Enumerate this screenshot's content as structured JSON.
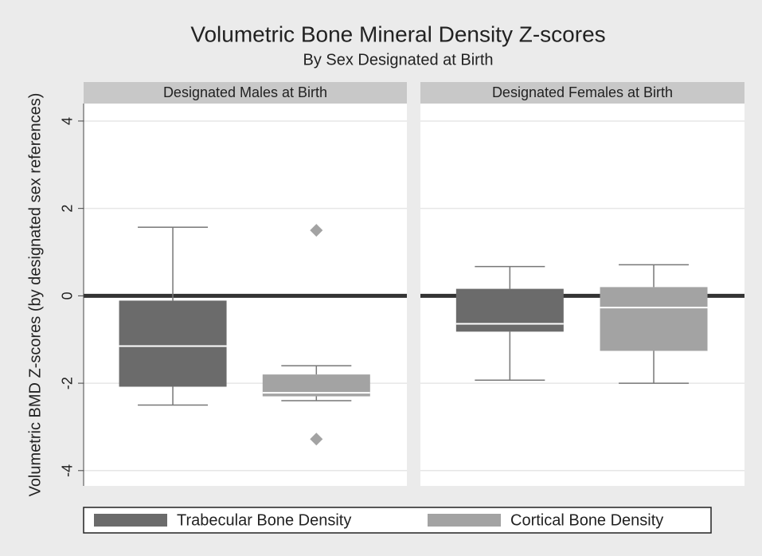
{
  "chart_data": {
    "type": "box",
    "title": "Volumetric Bone Mineral Density Z-scores",
    "subtitle": "By Sex Designated at Birth",
    "ylabel": "Volumetric BMD Z-scores (by designated sex references)",
    "ylim": [
      -4.35,
      4.4
    ],
    "yticks": [
      -4,
      -2,
      0,
      2,
      4
    ],
    "grid": true,
    "reference_line": 0,
    "series": [
      {
        "name": "Trabecular Bone Density",
        "color": "#6b6b6b"
      },
      {
        "name": "Cortical Bone Density",
        "color": "#a3a3a3"
      }
    ],
    "panels": [
      {
        "title": "Designated Males at Birth",
        "boxes": [
          {
            "whisker_low": -2.5,
            "q1": -2.08,
            "median": -1.15,
            "q3": -0.11,
            "whisker_high": 1.57,
            "outliers": []
          },
          {
            "whisker_low": -2.4,
            "q1": -2.3,
            "median": -2.22,
            "q3": -1.8,
            "whisker_high": -1.6,
            "outliers": [
              1.5,
              -3.28
            ]
          }
        ]
      },
      {
        "title": "Designated Females at Birth",
        "boxes": [
          {
            "whisker_low": -1.93,
            "q1": -0.82,
            "median": -0.64,
            "q3": 0.16,
            "whisker_high": 0.67,
            "outliers": []
          },
          {
            "whisker_low": -2.0,
            "q1": -1.26,
            "median": -0.27,
            "q3": 0.2,
            "whisker_high": 0.71,
            "outliers": []
          }
        ]
      }
    ]
  }
}
